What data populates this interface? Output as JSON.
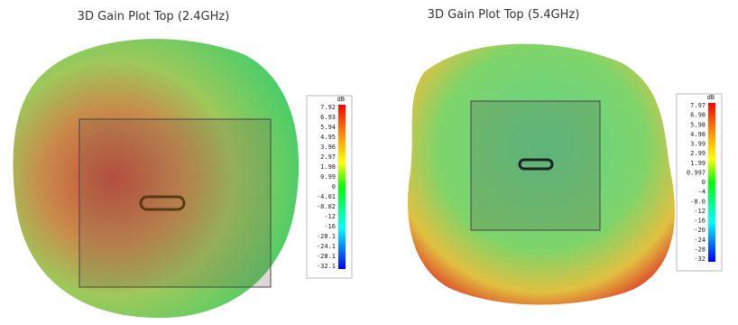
{
  "plots": [
    {
      "title": "3D Gain Plot Top (2.4GHz)",
      "colorbar": {
        "unit": "dB",
        "labels": [
          "7.92",
          "6.93",
          "5.94",
          "4.95",
          "3.96",
          "2.97",
          "1.98",
          "0.99",
          "0",
          "-4.01",
          "-8.02",
          "-12",
          "-16",
          "-20.1",
          "-24.1",
          "-28.1",
          "-32.1"
        ]
      }
    },
    {
      "title": "3D Gain Plot Top (5.4GHz)",
      "colorbar": {
        "unit": "dB",
        "labels": [
          "7.97",
          "6.98",
          "5.98",
          "4.98",
          "3.99",
          "2.99",
          "1.99",
          "0.997",
          "0",
          "-4",
          "-8.0",
          "-12",
          "-16",
          "-20",
          "-24",
          "-28",
          "-32"
        ]
      }
    }
  ]
}
